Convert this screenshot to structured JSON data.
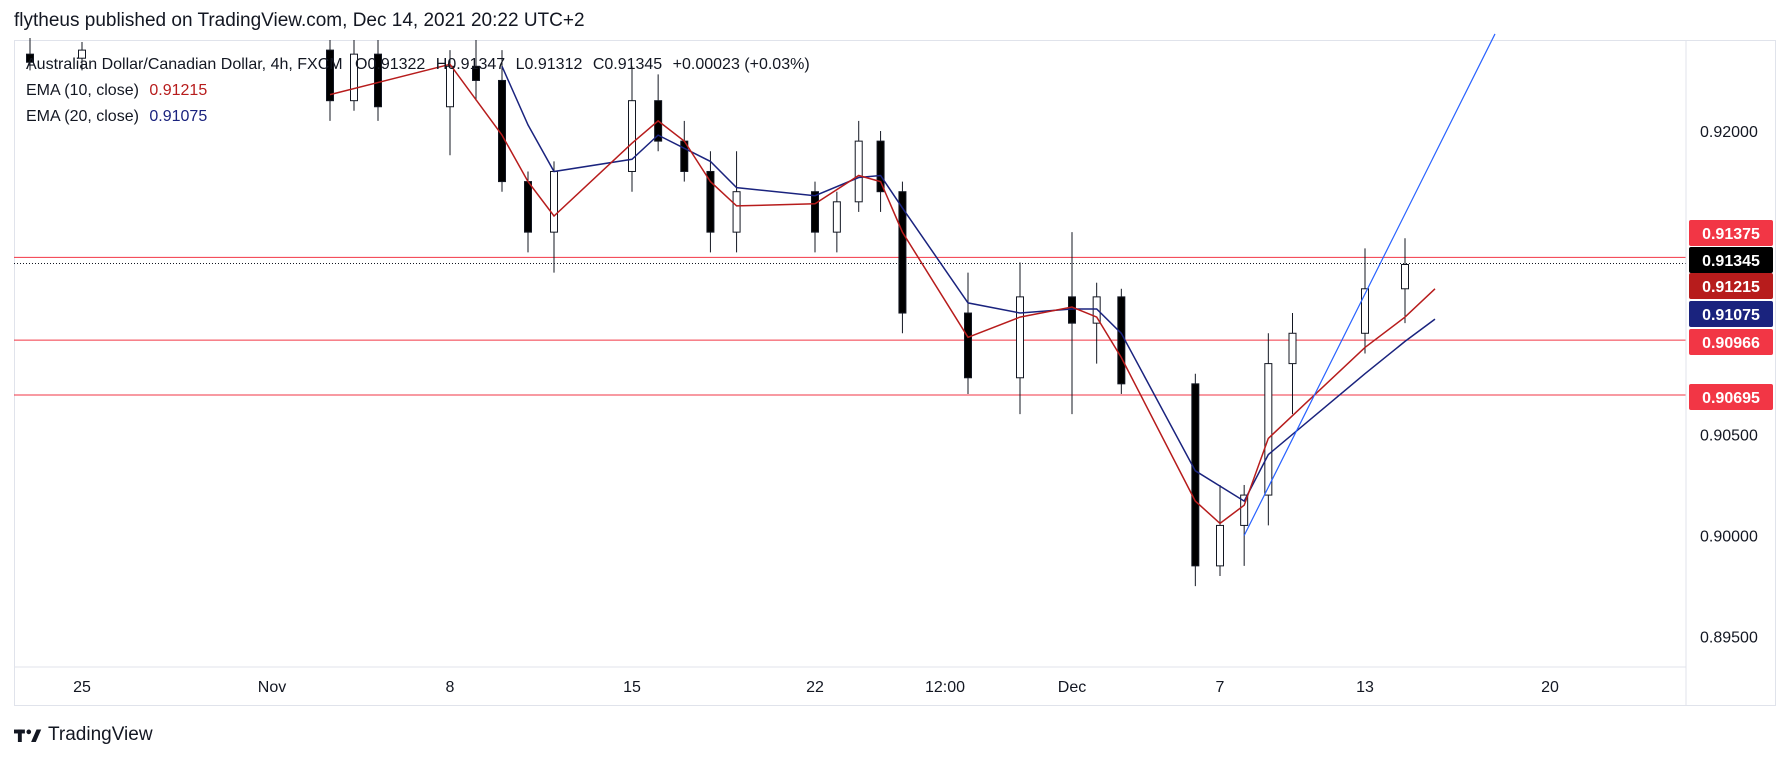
{
  "header": {
    "publisher_text": "flytheus published on TradingView.com, Dec 14, 2021 20:22 UTC+2"
  },
  "legend": {
    "symbol": "Australian Dollar/Canadian Dollar, 4h, FXCM",
    "open": "O0.91322",
    "high": "H0.91347",
    "low": "L0.91312",
    "close": "C0.91345",
    "change": "+0.00023 (+0.03%)",
    "ema10_label": "EMA (10, close)",
    "ema10_value": "0.91215",
    "ema20_label": "EMA (20, close)",
    "ema20_value": "0.91075"
  },
  "footer": {
    "brand": "TradingView"
  },
  "colors": {
    "ema10": "#b71c1c",
    "ema20": "#1a237e",
    "hline": "#f23645",
    "trendline": "#2962ff",
    "last_price_bg": "#000000"
  },
  "chart_data": {
    "type": "candlestick",
    "y_axis": {
      "range": [
        0.8935,
        0.9245
      ],
      "ticks": [
        "0.92000",
        "0.90500",
        "0.90000",
        "0.89500"
      ]
    },
    "x_axis": {
      "ticks": [
        "25",
        "Nov",
        "8",
        "15",
        "22",
        "12:00",
        "Dec",
        "7",
        "13",
        "20"
      ]
    },
    "horizontal_levels": [
      {
        "value": 0.91375,
        "label": "0.91375"
      },
      {
        "value": 0.90966,
        "label": "0.90966"
      },
      {
        "value": 0.90695,
        "label": "0.90695"
      }
    ],
    "price_labels": [
      {
        "value": 0.91375,
        "label": "0.91375",
        "kind": "level"
      },
      {
        "value": 0.91345,
        "label": "0.91345",
        "kind": "last"
      },
      {
        "value": 0.91215,
        "label": "0.91215",
        "kind": "ema10"
      },
      {
        "value": 0.91075,
        "label": "0.91075",
        "kind": "ema20"
      },
      {
        "value": 0.90966,
        "label": "0.90966",
        "kind": "level"
      },
      {
        "value": 0.90695,
        "label": "0.90695",
        "kind": "level"
      }
    ],
    "trend_line": {
      "from": {
        "date": "Dec 8 2021",
        "price": 0.9
      },
      "to": {
        "date": "Dec 17 2021",
        "price": 0.9248
      }
    },
    "ema10_path": [
      [
        "Nov 3",
        0.9218
      ],
      [
        "Nov 8",
        0.9233
      ],
      [
        "Nov 10",
        0.9198
      ],
      [
        "Nov 11",
        0.9175
      ],
      [
        "Nov 12",
        0.9158
      ],
      [
        "Nov 15",
        0.9194
      ],
      [
        "Nov 16",
        0.9205
      ],
      [
        "Nov 17",
        0.9195
      ],
      [
        "Nov 18",
        0.9175
      ],
      [
        "Nov 19",
        0.9163
      ],
      [
        "Nov 22",
        0.9164
      ],
      [
        "Nov 24",
        0.9178
      ],
      [
        "Nov 25",
        0.9175
      ],
      [
        "Nov 26",
        0.915
      ],
      [
        "Nov 29",
        0.9098
      ],
      [
        "Nov 30",
        0.9108
      ],
      [
        "Dec 1",
        0.9113
      ],
      [
        "Dec 2",
        0.9108
      ],
      [
        "Dec 3",
        0.9088
      ],
      [
        "Dec 6",
        0.9017
      ],
      [
        "Dec 7",
        0.9006
      ],
      [
        "Dec 8",
        0.9015
      ],
      [
        "Dec 9",
        0.9048
      ],
      [
        "Dec 13",
        0.9093
      ],
      [
        "Dec 14",
        0.9108
      ],
      [
        "Dec 15",
        0.9122
      ]
    ],
    "ema20_path": [
      [
        "Nov 10",
        0.9232
      ],
      [
        "Nov 11",
        0.9203
      ],
      [
        "Nov 12",
        0.918
      ],
      [
        "Nov 15",
        0.9186
      ],
      [
        "Nov 16",
        0.9198
      ],
      [
        "Nov 18",
        0.9185
      ],
      [
        "Nov 19",
        0.9172
      ],
      [
        "Nov 22",
        0.9168
      ],
      [
        "Nov 24",
        0.9177
      ],
      [
        "Nov 25",
        0.9178
      ],
      [
        "Nov 26",
        0.9162
      ],
      [
        "Nov 29",
        0.9115
      ],
      [
        "Nov 30",
        0.911
      ],
      [
        "Dec 1",
        0.9112
      ],
      [
        "Dec 2",
        0.9112
      ],
      [
        "Dec 3",
        0.91
      ],
      [
        "Dec 6",
        0.9032
      ],
      [
        "Dec 8",
        0.9017
      ],
      [
        "Dec 9",
        0.904
      ],
      [
        "Dec 13",
        0.908
      ],
      [
        "Dec 14",
        0.9096
      ],
      [
        "Dec 15",
        0.9107
      ]
    ],
    "candles_daily_approx": [
      {
        "date": "Oct 22",
        "o": 0.9238,
        "h": 0.9246,
        "l": 0.923,
        "c": 0.9234
      },
      {
        "date": "Oct 25",
        "o": 0.9236,
        "h": 0.9244,
        "l": 0.923,
        "c": 0.924
      },
      {
        "date": "Nov 3",
        "o": 0.924,
        "h": 0.9245,
        "l": 0.9205,
        "c": 0.9215
      },
      {
        "date": "Nov 4",
        "o": 0.9215,
        "h": 0.9245,
        "l": 0.921,
        "c": 0.9238
      },
      {
        "date": "Nov 5",
        "o": 0.9238,
        "h": 0.9245,
        "l": 0.9205,
        "c": 0.9212
      },
      {
        "date": "Nov 8",
        "o": 0.9212,
        "h": 0.924,
        "l": 0.9188,
        "c": 0.9232
      },
      {
        "date": "Nov 9",
        "o": 0.9232,
        "h": 0.9245,
        "l": 0.9215,
        "c": 0.9225
      },
      {
        "date": "Nov 10",
        "o": 0.9225,
        "h": 0.924,
        "l": 0.917,
        "c": 0.9175
      },
      {
        "date": "Nov 11",
        "o": 0.9175,
        "h": 0.918,
        "l": 0.914,
        "c": 0.915
      },
      {
        "date": "Nov 12",
        "o": 0.915,
        "h": 0.9185,
        "l": 0.913,
        "c": 0.918
      },
      {
        "date": "Nov 15",
        "o": 0.918,
        "h": 0.9232,
        "l": 0.917,
        "c": 0.9215
      },
      {
        "date": "Nov 16",
        "o": 0.9215,
        "h": 0.9228,
        "l": 0.919,
        "c": 0.9195
      },
      {
        "date": "Nov 17",
        "o": 0.9195,
        "h": 0.9205,
        "l": 0.9175,
        "c": 0.918
      },
      {
        "date": "Nov 18",
        "o": 0.918,
        "h": 0.919,
        "l": 0.914,
        "c": 0.915
      },
      {
        "date": "Nov 19",
        "o": 0.915,
        "h": 0.919,
        "l": 0.914,
        "c": 0.917
      },
      {
        "date": "Nov 22",
        "o": 0.917,
        "h": 0.9175,
        "l": 0.914,
        "c": 0.915
      },
      {
        "date": "Nov 23",
        "o": 0.915,
        "h": 0.917,
        "l": 0.914,
        "c": 0.9165
      },
      {
        "date": "Nov 24",
        "o": 0.9165,
        "h": 0.9205,
        "l": 0.916,
        "c": 0.9195
      },
      {
        "date": "Nov 25",
        "o": 0.9195,
        "h": 0.92,
        "l": 0.916,
        "c": 0.917
      },
      {
        "date": "Nov 26",
        "o": 0.917,
        "h": 0.9175,
        "l": 0.91,
        "c": 0.911
      },
      {
        "date": "Nov 29",
        "o": 0.911,
        "h": 0.913,
        "l": 0.907,
        "c": 0.9078
      },
      {
        "date": "Nov 30",
        "o": 0.9078,
        "h": 0.9135,
        "l": 0.906,
        "c": 0.9118
      },
      {
        "date": "Dec 1",
        "o": 0.9118,
        "h": 0.915,
        "l": 0.906,
        "c": 0.9105
      },
      {
        "date": "Dec 2",
        "o": 0.9105,
        "h": 0.9125,
        "l": 0.9085,
        "c": 0.9118
      },
      {
        "date": "Dec 3",
        "o": 0.9118,
        "h": 0.9122,
        "l": 0.907,
        "c": 0.9075
      },
      {
        "date": "Dec 6",
        "o": 0.9075,
        "h": 0.908,
        "l": 0.8975,
        "c": 0.8985
      },
      {
        "date": "Dec 7",
        "o": 0.8985,
        "h": 0.9025,
        "l": 0.898,
        "c": 0.9005
      },
      {
        "date": "Dec 8",
        "o": 0.9005,
        "h": 0.9025,
        "l": 0.8985,
        "c": 0.902
      },
      {
        "date": "Dec 9",
        "o": 0.902,
        "h": 0.91,
        "l": 0.9005,
        "c": 0.9085
      },
      {
        "date": "Dec 10",
        "o": 0.9085,
        "h": 0.911,
        "l": 0.906,
        "c": 0.91
      },
      {
        "date": "Dec 13",
        "o": 0.91,
        "h": 0.9142,
        "l": 0.909,
        "c": 0.9122
      },
      {
        "date": "Dec 14",
        "o": 0.9122,
        "h": 0.9147,
        "l": 0.9105,
        "c": 0.9134
      }
    ]
  }
}
